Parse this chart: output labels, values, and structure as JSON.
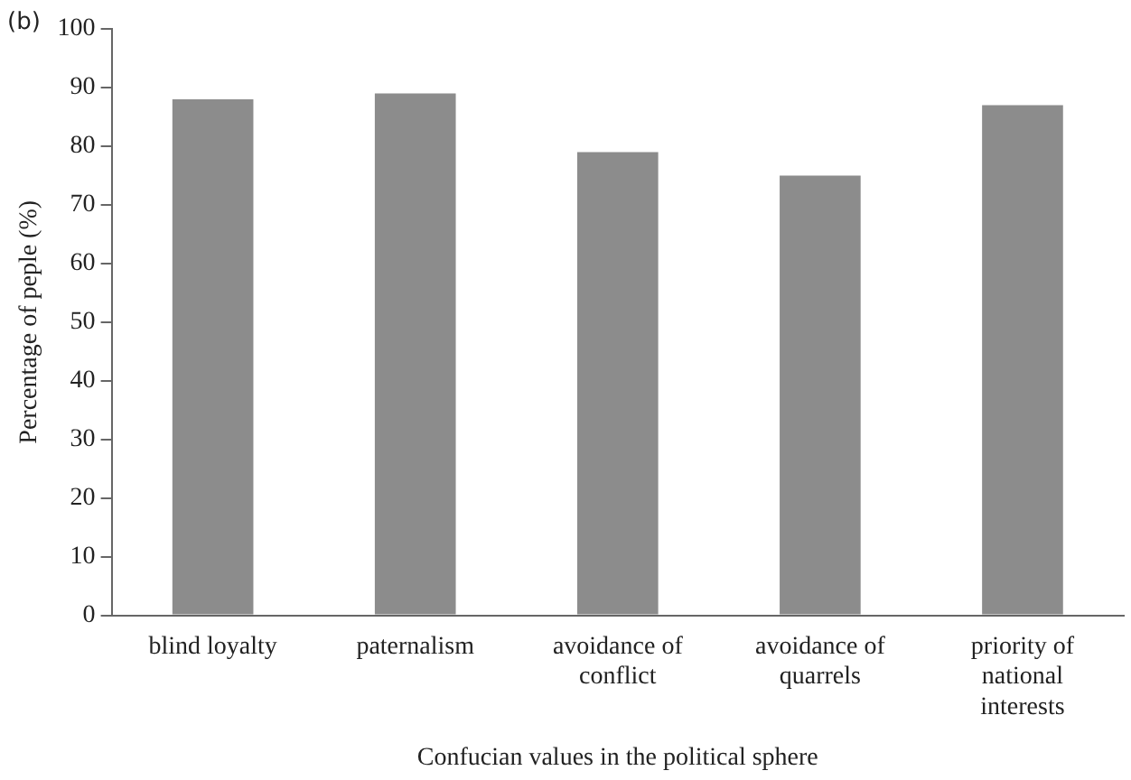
{
  "chart_data": {
    "type": "bar",
    "xlabel": "Confucian values in the political sphere",
    "ylabel": "Percentage of peple (%)",
    "annotations": [
      "(b)"
    ],
    "categories": [
      "blind loyalty",
      "paternalism",
      "avoidance of conflict",
      "avoidance of quarrels",
      "priority of national interests"
    ],
    "values": [
      88,
      89,
      79,
      75,
      87
    ],
    "color": "#8c8c8c",
    "ylim": [
      0,
      100
    ],
    "yticks": [
      0,
      10,
      20,
      30,
      40,
      50,
      60,
      70,
      80,
      90,
      100
    ],
    "grid": false,
    "legend": false
  }
}
